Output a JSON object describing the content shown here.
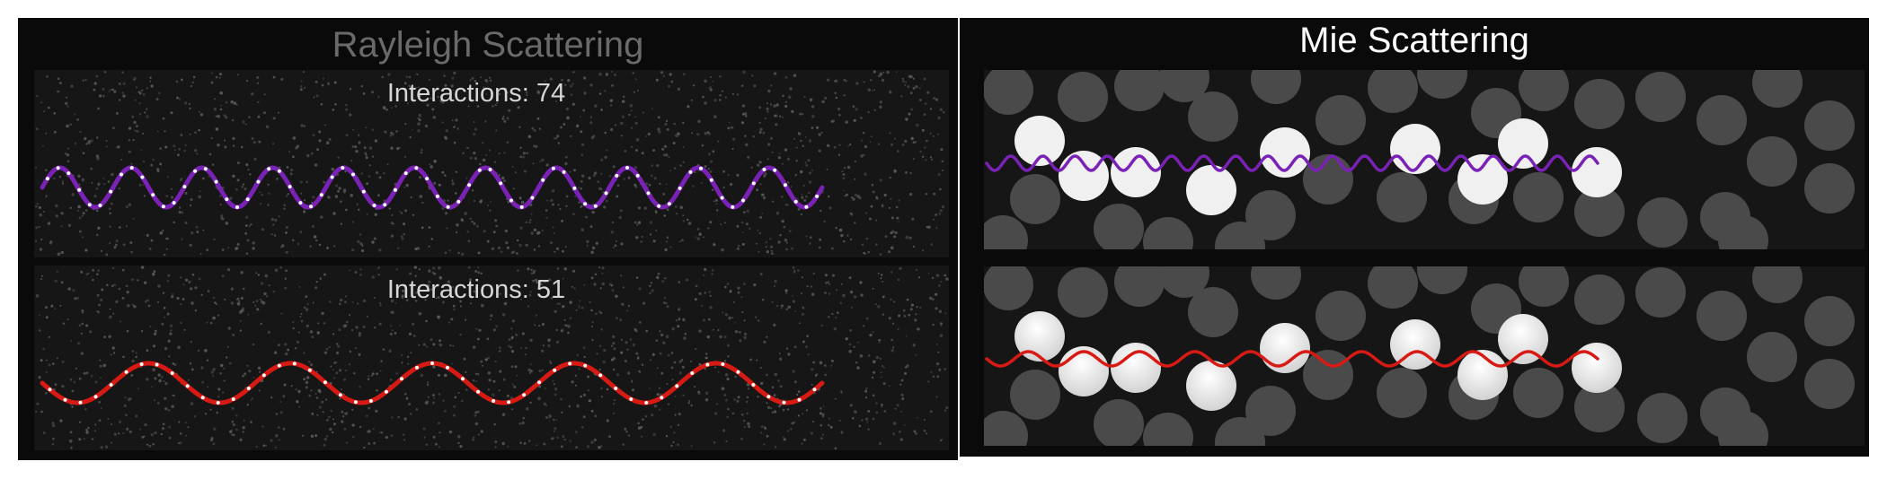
{
  "rayleigh": {
    "title": "Rayleigh Scattering",
    "top_wave": {
      "interactions_text": "Interactions: 74",
      "color": "#7a22b5",
      "cycles": 11
    },
    "bottom_wave": {
      "interactions_text": "Interactions: 51",
      "color": "#d81a14",
      "cycles": 5.5
    }
  },
  "mie": {
    "title": "Mie Scattering",
    "top_wave": {
      "color": "#7a22b5"
    },
    "bottom_wave": {
      "color": "#d81a14"
    }
  },
  "colors": {
    "panel_bg": "#0a0a0a",
    "field_bg": "#161616",
    "dust": "#5a5a5a",
    "particle_dark": "#4a4a4a",
    "particle_light": "#f0f0f0"
  }
}
